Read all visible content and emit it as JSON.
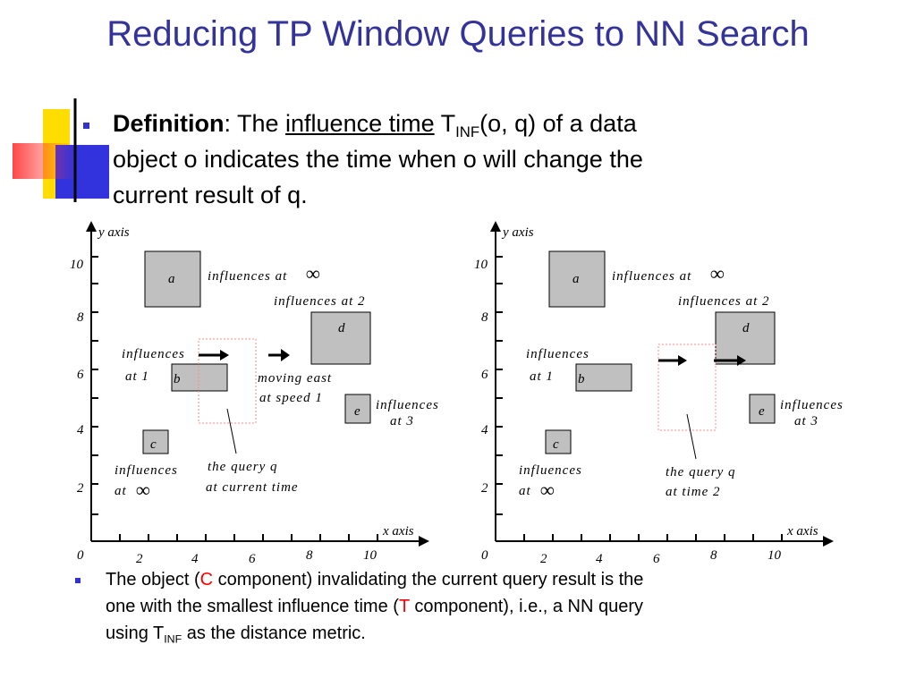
{
  "title": "Reducing TP Window Queries to NN Search",
  "definition": {
    "term": "Definition",
    "colon_the": ": The ",
    "influence_time": "influence time",
    "t": " T",
    "inf_sub": "INF",
    "rest_line1": "(o, q) of a data",
    "line2": "object o indicates the time when o will change the",
    "line3": "current result of q."
  },
  "note": {
    "part1": "The object (",
    "c": "C",
    "part2": " component) invalidating the current query result is the",
    "line2a": "one with the smallest influence time (",
    "t": "T",
    "line2b": " component), i.e., a NN query",
    "line3a": "using T",
    "inf_sub": "INF",
    "line3b": " as the distance metric."
  },
  "diagram_left": {
    "y_axis": "y axis",
    "x_axis": "x axis",
    "y_ticks": [
      "10",
      "8",
      "6",
      "4",
      "2"
    ],
    "x_ticks": [
      "0",
      "2",
      "4",
      "6",
      "8",
      "10"
    ],
    "labels": {
      "a": "a",
      "b": "b",
      "c": "c",
      "d": "d",
      "e": "e",
      "influences_inf_a": "influences at",
      "inf_symbol": "∞",
      "influences_2": "influences at 2",
      "influences_b1": "influences",
      "influences_b2": "at 1",
      "moving1": "moving east",
      "moving2": "at speed 1",
      "influences_e1": "influences",
      "influences_e2": "at 3",
      "influences_c1": "influences",
      "influences_c2": "at",
      "query1": "the query q",
      "query2": "at current time"
    }
  },
  "diagram_right": {
    "y_axis": "y axis",
    "x_axis": "x axis",
    "y_ticks": [
      "10",
      "8",
      "6",
      "4",
      "2"
    ],
    "x_ticks": [
      "0",
      "2",
      "4",
      "6",
      "8",
      "10"
    ],
    "labels": {
      "a": "a",
      "b": "b",
      "c": "c",
      "d": "d",
      "e": "e",
      "influences_inf_a": "influences at",
      "inf_symbol": "∞",
      "influences_2": "influences at 2",
      "influences_b1": "influences",
      "influences_b2": "at 1",
      "influences_e1": "influences",
      "influences_e2": "at 3",
      "influences_c1": "influences",
      "influences_c2": "at",
      "query1": "the query q",
      "query2": "at time 2"
    }
  },
  "colors": {
    "title": "#333399",
    "bullet": "#3333cc",
    "box_fill": "#c0c0c0",
    "query_box": "#ff8888",
    "highlight": "#ff0000"
  }
}
